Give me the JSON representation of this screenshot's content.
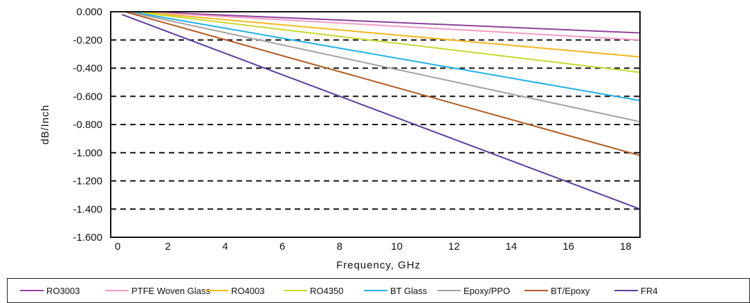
{
  "chart_data": {
    "type": "line",
    "xlabel": "Frequency, GHz",
    "ylabel": "dB/Inch",
    "xlim": [
      0,
      18.5
    ],
    "ylim": [
      -1.6,
      0
    ],
    "xticks": [
      "0",
      "2",
      "4",
      "6",
      "8",
      "10",
      "12",
      "14",
      "16",
      "18"
    ],
    "yticks": [
      "0.000",
      "-0.200",
      "-0.400",
      "-0.600",
      "-0.800",
      "-1.000",
      "-1.200",
      "-1.400",
      "-1.600"
    ],
    "grid": "dashed horizontal",
    "legend_position": "bottom",
    "series": [
      {
        "name": "RO3003",
        "color": "#8e3f9b",
        "x": [
          1.2,
          18.5
        ],
        "y": [
          0.0,
          -0.15
        ]
      },
      {
        "name": "PTFE Woven Glass",
        "color": "#f39ac7",
        "x": [
          1.0,
          18.5
        ],
        "y": [
          0.0,
          -0.2
        ]
      },
      {
        "name": "RO4003",
        "color": "#f5b81e",
        "x": [
          0.9,
          18.5
        ],
        "y": [
          0.0,
          -0.32
        ]
      },
      {
        "name": "RO4350",
        "color": "#cad72e",
        "x": [
          0.8,
          18.5
        ],
        "y": [
          0.0,
          -0.43
        ]
      },
      {
        "name": "BT Glass",
        "color": "#1fb1e6",
        "x": [
          0.7,
          18.5
        ],
        "y": [
          0.0,
          -0.63
        ]
      },
      {
        "name": "Epoxy/PPO",
        "color": "#a89e9d",
        "x": [
          0.6,
          18.5
        ],
        "y": [
          0.0,
          -0.78
        ]
      },
      {
        "name": "BT/Epoxy",
        "color": "#b15b25",
        "x": [
          0.5,
          18.5
        ],
        "y": [
          0.0,
          -1.02
        ]
      },
      {
        "name": "FR4",
        "color": "#5b3b9b",
        "x": [
          0.4,
          18.5
        ],
        "y": [
          -0.02,
          -1.4
        ]
      }
    ]
  }
}
